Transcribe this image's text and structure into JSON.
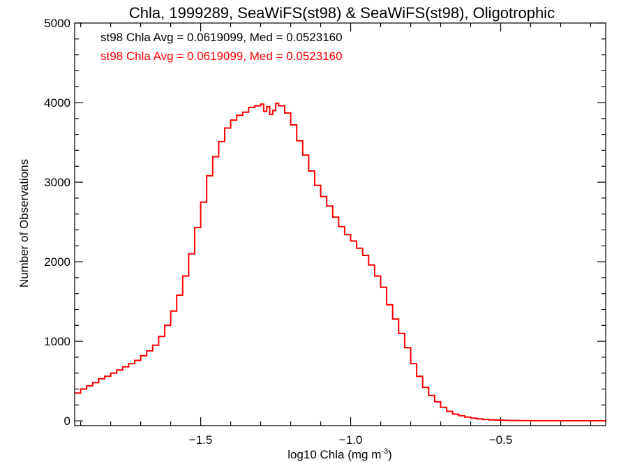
{
  "chart_data": {
    "type": "line",
    "title": "Chla, 1999289, SeaWiFS(st98) & SeaWiFS(st98), Oligotrophic",
    "xlabel": "log10 Chla (mg m",
    "xlabel_sup": "-3",
    "xlabel_close": ")",
    "ylabel": "Number of Observations",
    "xlim": [
      -1.92,
      -0.15
    ],
    "ylim": [
      -60,
      5000
    ],
    "x_major_ticks": [
      -1.5,
      -1.0,
      -0.5
    ],
    "x_tick_labels": [
      "−1.5",
      "−1.0",
      "−0.5"
    ],
    "x_minor_ticks": [
      -1.9,
      -1.8,
      -1.7,
      -1.6,
      -1.4,
      -1.3,
      -1.2,
      -1.1,
      -0.9,
      -0.8,
      -0.7,
      -0.6,
      -0.4,
      -0.3,
      -0.2
    ],
    "y_major_ticks": [
      0,
      1000,
      2000,
      3000,
      4000,
      5000
    ],
    "y_tick_labels": [
      "0",
      "1000",
      "2000",
      "3000",
      "4000",
      "5000"
    ],
    "y_minor_ticks": [
      200,
      400,
      600,
      800,
      1200,
      1400,
      1600,
      1800,
      2200,
      2400,
      2600,
      2800,
      3200,
      3400,
      3600,
      3800,
      4200,
      4400,
      4600,
      4800
    ],
    "legend": [
      {
        "text": "st98 Chla Avg = 0.0619099, Med = 0.0523160",
        "color": "#000000"
      },
      {
        "text": "st98 Chla Avg = 0.0619099, Med = 0.0523160",
        "color": "#ff0000"
      }
    ],
    "series": [
      {
        "color": "#ff0000",
        "style": "steps",
        "x": [
          -1.92,
          -1.9,
          -1.88,
          -1.86,
          -1.84,
          -1.82,
          -1.8,
          -1.78,
          -1.76,
          -1.74,
          -1.72,
          -1.7,
          -1.68,
          -1.66,
          -1.64,
          -1.62,
          -1.6,
          -1.58,
          -1.56,
          -1.54,
          -1.52,
          -1.5,
          -1.48,
          -1.46,
          -1.44,
          -1.42,
          -1.4,
          -1.38,
          -1.36,
          -1.34,
          -1.32,
          -1.3,
          -1.29,
          -1.28,
          -1.27,
          -1.26,
          -1.25,
          -1.24,
          -1.22,
          -1.2,
          -1.18,
          -1.16,
          -1.14,
          -1.12,
          -1.1,
          -1.08,
          -1.06,
          -1.04,
          -1.02,
          -1.0,
          -0.98,
          -0.96,
          -0.94,
          -0.92,
          -0.9,
          -0.88,
          -0.86,
          -0.84,
          -0.82,
          -0.8,
          -0.78,
          -0.76,
          -0.74,
          -0.72,
          -0.7,
          -0.68,
          -0.66,
          -0.64,
          -0.62,
          -0.6,
          -0.58,
          -0.56,
          -0.54,
          -0.52,
          -0.5,
          -0.48,
          -0.46,
          -0.44,
          -0.42,
          -0.4,
          -0.35,
          -0.3,
          -0.25,
          -0.2,
          -0.15
        ],
        "y": [
          350,
          400,
          440,
          480,
          530,
          560,
          600,
          640,
          680,
          720,
          760,
          820,
          880,
          950,
          1060,
          1200,
          1380,
          1580,
          1820,
          2100,
          2430,
          2750,
          3080,
          3320,
          3510,
          3680,
          3780,
          3840,
          3880,
          3940,
          3960,
          3980,
          3890,
          3950,
          3850,
          3900,
          3990,
          3960,
          3870,
          3720,
          3520,
          3340,
          3140,
          2960,
          2820,
          2700,
          2560,
          2440,
          2340,
          2260,
          2170,
          2080,
          1960,
          1820,
          1680,
          1460,
          1280,
          1100,
          920,
          720,
          560,
          420,
          320,
          240,
          170,
          120,
          85,
          65,
          48,
          35,
          25,
          18,
          14,
          10,
          8,
          6,
          5,
          4,
          3,
          2,
          2,
          1,
          1,
          1,
          0
        ]
      }
    ]
  }
}
